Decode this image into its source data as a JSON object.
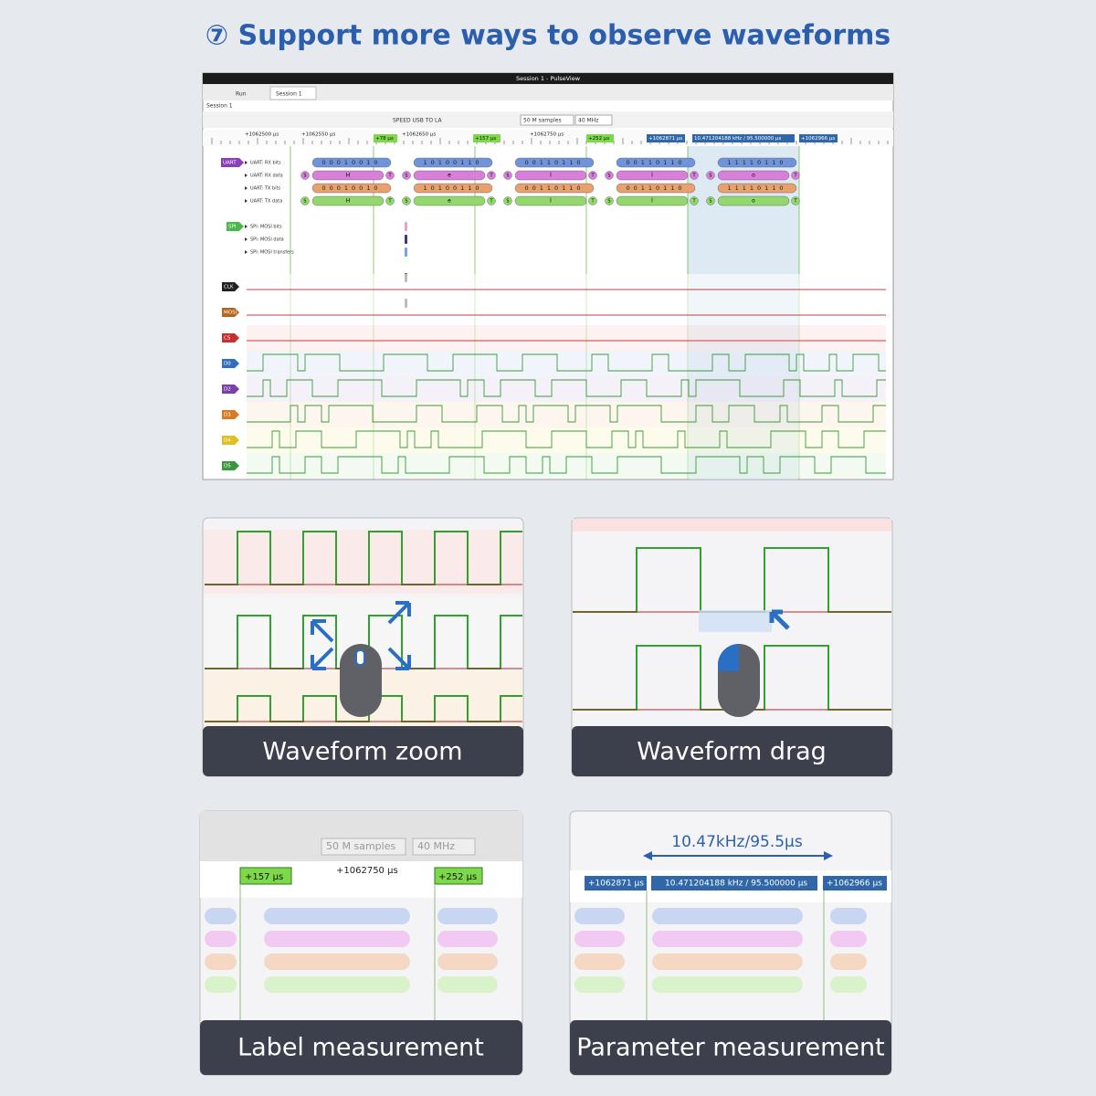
{
  "title": "⑦ Support more ways to observe waveforms",
  "window": {
    "title": "Session 1 - PulseView",
    "tabs": [
      "Run",
      "Session 1"
    ],
    "session_label": "Session 1",
    "device": "SPEED USB TO LA",
    "samples": "50 M samples",
    "rate": "40 MHz",
    "ruler": [
      "+1062500 μs",
      "+1062550 μs",
      "+1062650 μs",
      "+1062750 μs"
    ],
    "markers": [
      "+78 μs",
      "+157 μs",
      "+252 μs",
      "+1062871 μs",
      "10.471204188 kHz / 95.500000 μs",
      "+1062966 μs"
    ],
    "decoder_rows": [
      "UART: RX bits",
      "UART: RX data",
      "UART: TX bits",
      "UART: TX data",
      "SPI: MOSI bits",
      "SPI: MOSI data",
      "SPI: MOSI transfers"
    ],
    "decoders": [
      "UART",
      "SPI"
    ],
    "channels": [
      "CLK",
      "MOSI",
      "CS",
      "D0",
      "D2",
      "D3",
      "D4",
      "D5"
    ],
    "start_bit": "S",
    "stop_bit": "T",
    "bytes": [
      "H",
      "e",
      "l",
      "l",
      "o"
    ],
    "bits": [
      "00010010",
      "10100110",
      "00110110",
      "00110110",
      "11110110"
    ]
  },
  "panels": [
    "Waveform zoom",
    "Waveform drag",
    "Label measurement",
    "Parameter measurement"
  ],
  "parameter_label": "10.47kHz/95.5μs"
}
